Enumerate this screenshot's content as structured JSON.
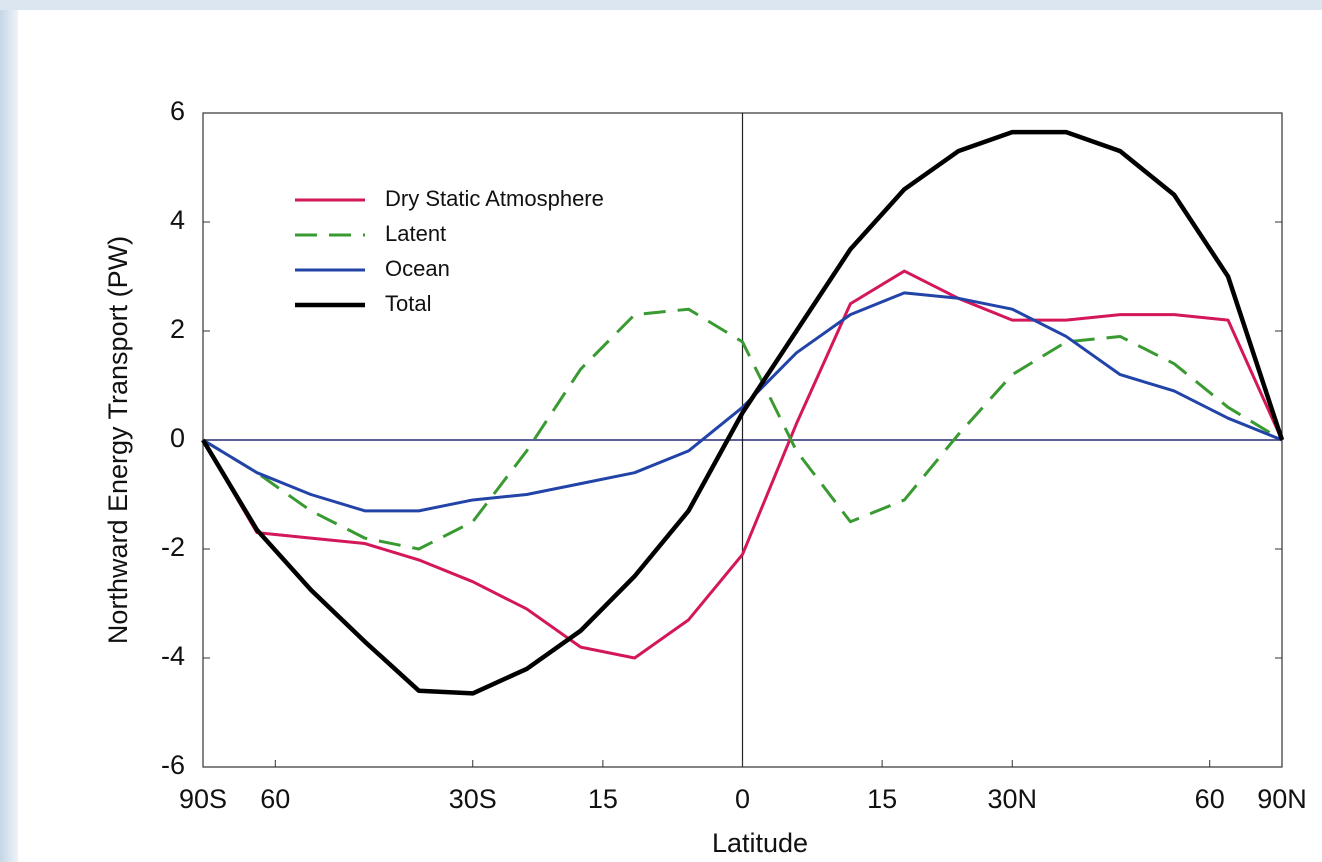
{
  "chart_data": {
    "type": "line",
    "xlabel": "Latitude",
    "ylabel": "Northward Energy Transport (PW)",
    "x": [
      -1,
      -0.9,
      -0.8,
      -0.7,
      -0.6,
      -0.5,
      -0.4,
      -0.3,
      -0.2,
      -0.1,
      0,
      0.1,
      0.2,
      0.3,
      0.4,
      0.5,
      0.6,
      0.7,
      0.8,
      0.9,
      1
    ],
    "series": [
      {
        "name": "Dry Static Atmosphere",
        "color": "#d3175a",
        "linestyle": "solid",
        "linewidth": 3,
        "values": [
          0,
          -1.7,
          -1.8,
          -1.9,
          -2.2,
          -2.6,
          -3.1,
          -3.8,
          -4.0,
          -3.3,
          -2.1,
          0.3,
          2.5,
          3.1,
          2.6,
          2.2,
          2.2,
          2.3,
          2.3,
          2.2,
          0
        ]
      },
      {
        "name": "Latent",
        "color": "#3a9a32",
        "linestyle": "dashed",
        "linewidth": 3,
        "values": [
          0,
          -0.6,
          -1.3,
          -1.8,
          -2.0,
          -1.5,
          -0.2,
          1.3,
          2.3,
          2.4,
          1.8,
          -0.2,
          -1.5,
          -1.1,
          0.1,
          1.2,
          1.8,
          1.9,
          1.4,
          0.6,
          0
        ]
      },
      {
        "name": "Ocean",
        "color": "#2243a8",
        "linestyle": "solid",
        "linewidth": 3,
        "values": [
          0,
          -0.6,
          -1.0,
          -1.3,
          -1.3,
          -1.1,
          -1.0,
          -0.8,
          -0.6,
          -0.2,
          0.6,
          1.6,
          2.3,
          2.7,
          2.6,
          2.4,
          1.9,
          1.2,
          0.9,
          0.4,
          0
        ]
      },
      {
        "name": "Total",
        "color": "#000000",
        "linestyle": "solid",
        "linewidth": 4.5,
        "values": [
          0,
          -1.65,
          -2.75,
          -3.7,
          -4.6,
          -4.65,
          -4.2,
          -3.5,
          -2.5,
          -1.3,
          0.5,
          2.0,
          3.5,
          4.6,
          5.3,
          5.65,
          5.65,
          5.3,
          4.5,
          3.0,
          0
        ]
      }
    ],
    "xlim": [
      -1,
      1
    ],
    "xticks": [
      {
        "value": -1,
        "label": "90S"
      },
      {
        "value": -0.866,
        "label": "60"
      },
      {
        "value": -0.5,
        "label": "30S"
      },
      {
        "value": -0.2588,
        "label": "15"
      },
      0,
      {
        "value": 0.2588,
        "label": "15"
      },
      {
        "value": 0.5,
        "label": "30N"
      },
      {
        "value": 0.866,
        "label": "60"
      },
      {
        "value": 1,
        "label": "90N"
      }
    ],
    "ylim": [
      -6,
      6
    ],
    "yticks": [
      -6,
      -4,
      -2,
      0,
      2,
      4,
      6
    ],
    "legend": "upper left",
    "grid": false
  }
}
